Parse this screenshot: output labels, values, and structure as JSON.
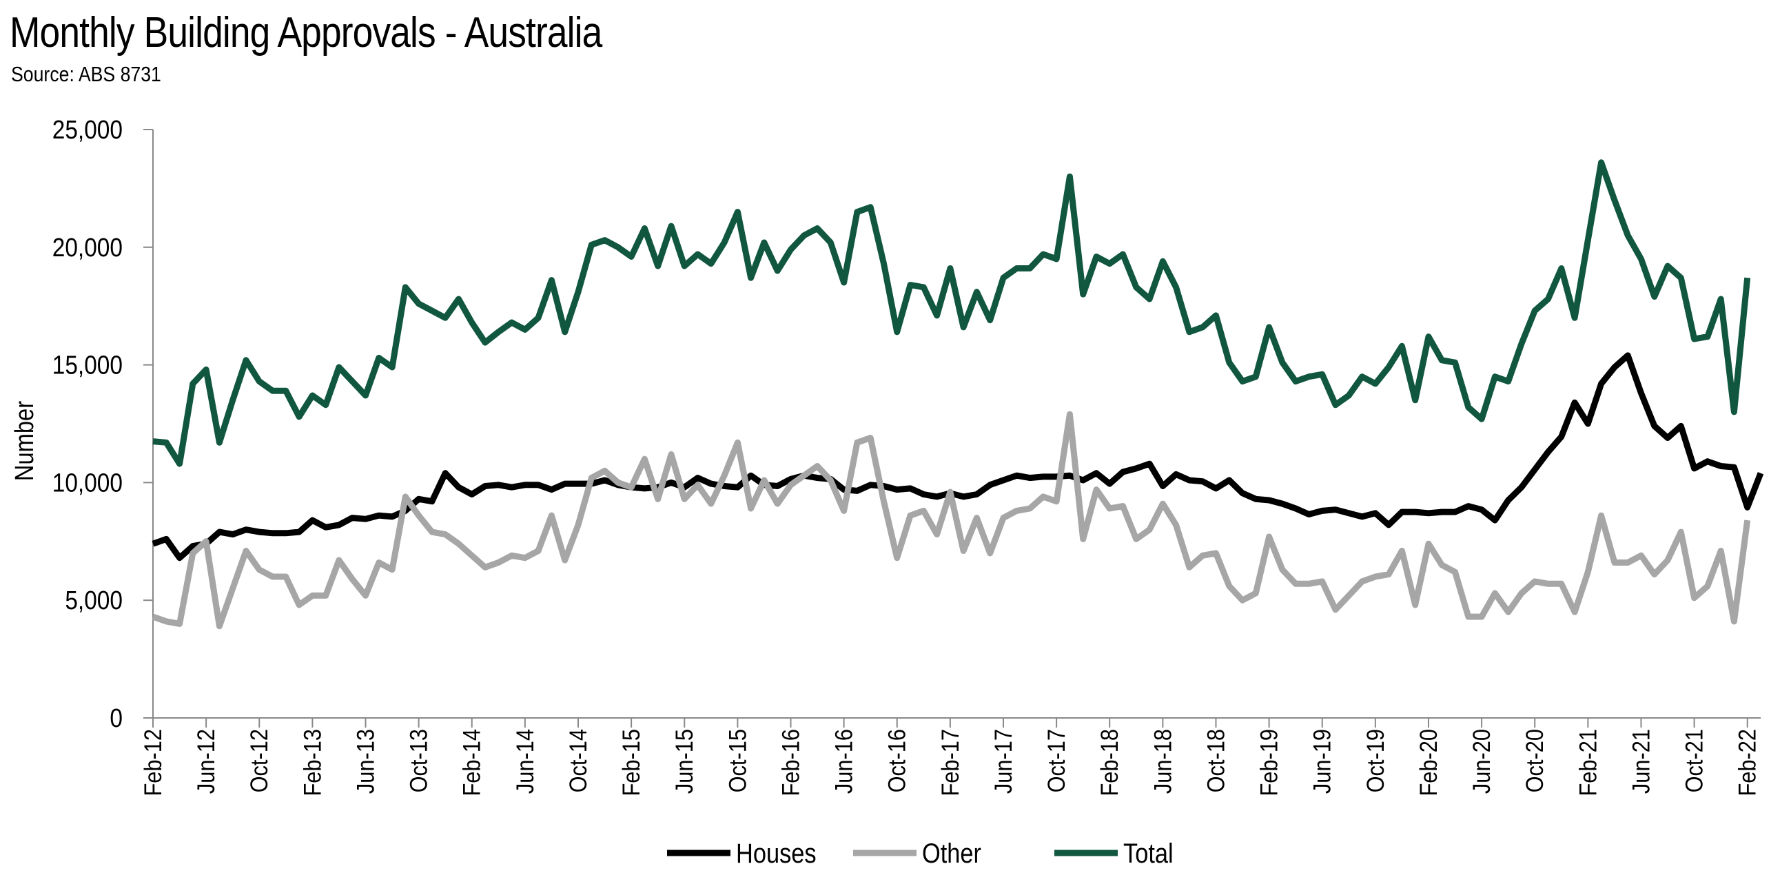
{
  "title": "Monthly Building Approvals - Australia",
  "subtitle": "Source: ABS 8731",
  "chart_data": {
    "type": "line",
    "title": "Monthly Building Approvals - Australia",
    "subtitle": "Source: ABS 8731",
    "ylabel": "Number",
    "xlabel": "",
    "ylim": [
      0,
      25000
    ],
    "yticks": [
      "0",
      "5,000",
      "10,000",
      "15,000",
      "20,000",
      "25,000"
    ],
    "ytick_values": [
      0,
      5000,
      10000,
      15000,
      20000,
      25000
    ],
    "x_tick_labels": [
      "Feb-12",
      "Jun-12",
      "Oct-12",
      "Feb-13",
      "Jun-13",
      "Oct-13",
      "Feb-14",
      "Jun-14",
      "Oct-14",
      "Feb-15",
      "Jun-15",
      "Oct-15",
      "Feb-16",
      "Jun-16",
      "Oct-16",
      "Feb-17",
      "Jun-17",
      "Oct-17",
      "Feb-18",
      "Jun-18",
      "Oct-18",
      "Feb-19",
      "Jun-19",
      "Oct-19",
      "Feb-20",
      "Jun-20",
      "Oct-20",
      "Feb-21",
      "Jun-21",
      "Oct-21",
      "Feb-22"
    ],
    "x_start": "Feb-12",
    "x_end": "Feb-22",
    "grid": false,
    "legend_position": "bottom",
    "series": [
      {
        "name": "Houses",
        "color": "#000000",
        "values": [
          7400,
          7600,
          6800,
          7300,
          7400,
          7900,
          7800,
          8000,
          7900,
          7850,
          7850,
          7900,
          8400,
          8100,
          8200,
          8500,
          8450,
          8600,
          8550,
          8800,
          9300,
          9200,
          10400,
          9800,
          9500,
          9850,
          9900,
          9800,
          9900,
          9900,
          9700,
          9950,
          9950,
          9950,
          10100,
          9900,
          9800,
          9750,
          9800,
          10000,
          9800,
          10200,
          9950,
          9850,
          9800,
          10300,
          9900,
          9850,
          10150,
          10300,
          10200,
          10150,
          9700,
          9650,
          9900,
          9850,
          9700,
          9750,
          9500,
          9400,
          9550,
          9400,
          9500,
          9900,
          10100,
          10300,
          10200,
          10250,
          10250,
          10300,
          10100,
          10400,
          9950,
          10450,
          10600,
          10800,
          9850,
          10350,
          10100,
          10050,
          9750,
          10100,
          9550,
          9300,
          9250,
          9100,
          8900,
          8650,
          8800,
          8850,
          8700,
          8550,
          8700,
          8200,
          8750,
          8750,
          8700,
          8750,
          8750,
          9000,
          8850,
          8400,
          9250,
          9800,
          10550,
          11300,
          11950,
          13400,
          12500,
          14200,
          14900,
          15400,
          13800,
          12400,
          11900,
          12400,
          10600,
          10900,
          10700,
          10650,
          8950,
          10400
        ]
      },
      {
        "name": "Other",
        "color": "#a6a6a6",
        "values": [
          4300,
          4100,
          4000,
          7000,
          7500,
          3900,
          5500,
          7100,
          6300,
          6000,
          6000,
          4800,
          5200,
          5200,
          6700,
          5900,
          5200,
          6600,
          6300,
          9400,
          8600,
          7900,
          7800,
          7400,
          6900,
          6400,
          6600,
          6900,
          6800,
          7100,
          8600,
          6700,
          8200,
          10200,
          10500,
          10000,
          9800,
          11000,
          9300,
          11200,
          9300,
          9900,
          9100,
          10300,
          11700,
          8900,
          10100,
          9100,
          9900,
          10300,
          10700,
          10100,
          8800,
          11700,
          11900,
          9200,
          6800,
          8600,
          8800,
          7800,
          9600,
          7100,
          8500,
          7000,
          8500,
          8800,
          8900,
          9400,
          9200,
          12900,
          7600,
          9700,
          8900,
          9000,
          7600,
          8000,
          9100,
          8200,
          6400,
          6900,
          7000,
          5600,
          5000,
          5300,
          7700,
          6300,
          5700,
          5700,
          5800,
          4600,
          5200,
          5800,
          6000,
          6100,
          7100,
          4800,
          7400,
          6500,
          6200,
          4300,
          4300,
          5300,
          4500,
          5300,
          5800,
          5700,
          5700,
          4500,
          6200,
          8600,
          6600,
          6600,
          6900,
          6100,
          6700,
          7900,
          5100,
          5600,
          7100,
          4100,
          8400
        ]
      },
      {
        "name": "Total",
        "color": "#11573f",
        "values": [
          11750,
          11700,
          10800,
          14200,
          14800,
          11700,
          13500,
          15200,
          14300,
          13900,
          13900,
          12800,
          13700,
          13300,
          14900,
          14300,
          13700,
          15300,
          14900,
          18300,
          17600,
          17300,
          17000,
          17800,
          16800,
          15950,
          16400,
          16800,
          16500,
          17000,
          18600,
          16400,
          18100,
          20100,
          20300,
          20000,
          19600,
          20800,
          19200,
          20900,
          19200,
          19700,
          19300,
          20200,
          21500,
          18700,
          20200,
          19000,
          19900,
          20500,
          20800,
          20200,
          18500,
          21500,
          21700,
          19300,
          16400,
          18400,
          18300,
          17100,
          19100,
          16600,
          18100,
          16900,
          18700,
          19100,
          19100,
          19700,
          19500,
          23000,
          18000,
          19600,
          19300,
          19700,
          18300,
          17800,
          19400,
          18300,
          16400,
          16600,
          17100,
          15100,
          14300,
          14500,
          16600,
          15100,
          14300,
          14500,
          14600,
          13300,
          13700,
          14500,
          14200,
          14900,
          15800,
          13500,
          16200,
          15200,
          15100,
          13200,
          12700,
          14500,
          14300,
          15900,
          17300,
          17800,
          19100,
          17000,
          20300,
          23600,
          22000,
          20500,
          19500,
          17900,
          19200,
          18700,
          16100,
          16200,
          17800,
          13000,
          18700
        ]
      }
    ]
  }
}
